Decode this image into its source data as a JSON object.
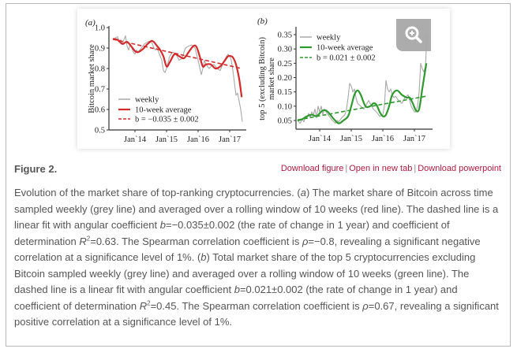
{
  "figure": {
    "label": "Figure 2.",
    "links": [
      "Download figure",
      "Open in new tab",
      "Download powerpoint"
    ],
    "link_separator": "|",
    "zoom_icon": "zoom-in-icon"
  },
  "caption": {
    "p1": "Evolution of the market share of top-ranking cryptocurrencies. (",
    "a": "a",
    "p2": ") The market share of Bitcoin across time sampled weekly (grey line) and averaged over a rolling window of 10 weeks (red line). The dashed line is a linear fit with angular coefficient ",
    "b_sym1": "b",
    "p3": "=−0.035±0.002 (the rate of change in 1 year) and coefficient of determination ",
    "r_sym1": "R",
    "sup1": "2",
    "p4": "=0.63. The Spearman correlation coefficient is ",
    "rho1": "ρ",
    "p5": "=−0.8, revealing a significant negative correlation at a significance level of 1%. (",
    "bpanel": "b",
    "p6": ") Total market share of the top 5 cryptocurrencies excluding Bitcoin sampled weekly (grey line) and averaged over a rolling window of 10 weeks (green line). The dashed line is a linear fit with angular coefficient ",
    "b_sym2": "b",
    "p7": "=0.021±0.002 (the rate of change in 1 year) and coefficient of determination ",
    "r_sym2": "R",
    "sup2": "2",
    "p8": "=0.45. The Spearman correlation coefficient is ",
    "rho2": "ρ",
    "p9": "=0.67, revealing a significant positive correlation at a significance level of 1%."
  },
  "chart_data": [
    {
      "type": "line",
      "panel": "(a)",
      "ylabel": "Bitcoin market share",
      "xlabel": "",
      "xticks": [
        "Jan`14",
        "Jan`15",
        "Jan`16",
        "Jan`17"
      ],
      "xtick_values": [
        2014,
        2015,
        2016,
        2017
      ],
      "yticks": [
        "0.5",
        "0.6",
        "0.7",
        "0.8",
        "0.9",
        "1.0"
      ],
      "ytick_values": [
        0.5,
        0.6,
        0.7,
        0.8,
        0.9,
        1.0
      ],
      "xlim": [
        2013.1,
        2017.5
      ],
      "ylim": [
        0.5,
        1.0
      ],
      "colors": {
        "weekly": "#a8a8a8",
        "avg": "#d42a2a",
        "fit": "#d42a2a"
      },
      "legend": {
        "position": "bottom-left",
        "entries": [
          "weekly",
          "10-week average",
          "b = −0.035 ± 0.002"
        ]
      },
      "series": [
        {
          "name": "weekly",
          "x": [
            2013.3,
            2013.38,
            2013.45,
            2013.5,
            2013.55,
            2013.6,
            2013.65,
            2013.7,
            2013.75,
            2013.8,
            2013.85,
            2013.9,
            2013.95,
            2014.0,
            2014.05,
            2014.1,
            2014.2,
            2014.3,
            2014.4,
            2014.5,
            2014.55,
            2014.6,
            2014.65,
            2014.7,
            2014.75,
            2014.8,
            2014.85,
            2014.9,
            2014.95,
            2015.0,
            2015.05,
            2015.1,
            2015.15,
            2015.2,
            2015.3,
            2015.4,
            2015.5,
            2015.55,
            2015.6,
            2015.7,
            2015.8,
            2015.9,
            2016.0,
            2016.1,
            2016.15,
            2016.2,
            2016.25,
            2016.3,
            2016.35,
            2016.4,
            2016.5,
            2016.6,
            2016.7,
            2016.8,
            2016.9,
            2016.95,
            2017.0,
            2017.05,
            2017.1,
            2017.15,
            2017.2,
            2017.25,
            2017.3,
            2017.35,
            2017.4
          ],
          "y": [
            0.94,
            0.95,
            0.955,
            0.93,
            0.94,
            0.92,
            0.94,
            0.96,
            0.91,
            0.89,
            0.92,
            0.9,
            0.88,
            0.87,
            0.89,
            0.88,
            0.9,
            0.92,
            0.93,
            0.935,
            0.92,
            0.9,
            0.89,
            0.9,
            0.88,
            0.86,
            0.84,
            0.79,
            0.78,
            0.8,
            0.83,
            0.86,
            0.87,
            0.88,
            0.87,
            0.84,
            0.85,
            0.88,
            0.9,
            0.91,
            0.915,
            0.9,
            0.84,
            0.77,
            0.8,
            0.84,
            0.82,
            0.81,
            0.8,
            0.81,
            0.82,
            0.8,
            0.79,
            0.83,
            0.86,
            0.87,
            0.86,
            0.84,
            0.79,
            0.73,
            0.67,
            0.68,
            0.64,
            0.6,
            0.54
          ]
        },
        {
          "name": "10-week average",
          "x": [
            2013.3,
            2013.45,
            2013.6,
            2013.75,
            2013.9,
            2014.0,
            2014.1,
            2014.25,
            2014.4,
            2014.55,
            2014.7,
            2014.8,
            2014.9,
            2015.0,
            2015.1,
            2015.25,
            2015.4,
            2015.55,
            2015.7,
            2015.85,
            2015.95,
            2016.05,
            2016.15,
            2016.25,
            2016.4,
            2016.55,
            2016.7,
            2016.85,
            2016.95,
            2017.05,
            2017.12,
            2017.2,
            2017.3,
            2017.38
          ],
          "y": [
            0.945,
            0.94,
            0.92,
            0.93,
            0.905,
            0.885,
            0.88,
            0.895,
            0.92,
            0.935,
            0.91,
            0.89,
            0.86,
            0.81,
            0.83,
            0.87,
            0.86,
            0.85,
            0.88,
            0.91,
            0.905,
            0.86,
            0.81,
            0.82,
            0.82,
            0.8,
            0.81,
            0.84,
            0.86,
            0.86,
            0.85,
            0.82,
            0.75,
            0.66
          ]
        },
        {
          "name": "linear fit",
          "x": [
            2013.3,
            2017.38
          ],
          "y": [
            0.943,
            0.8
          ]
        }
      ]
    },
    {
      "type": "line",
      "panel": "(b)",
      "ylabel": "top 5 (excluding Bitcoin) market share",
      "xlabel": "",
      "xticks": [
        "Jan`14",
        "Jan`15",
        "Jan`16",
        "Jan`17"
      ],
      "xtick_values": [
        2014,
        2015,
        2016,
        2017
      ],
      "yticks": [
        "0.05",
        "0.10",
        "0.15",
        "0.20",
        "0.25",
        "0.30",
        "0.35"
      ],
      "ytick_values": [
        0.05,
        0.1,
        0.15,
        0.2,
        0.25,
        0.3,
        0.35
      ],
      "xlim": [
        2013.1,
        2017.5
      ],
      "ylim": [
        0.035,
        0.36
      ],
      "colors": {
        "weekly": "#a8a8a8",
        "avg": "#2e9a2e",
        "fit": "#2e9a2e"
      },
      "legend": {
        "position": "top-left",
        "entries": [
          "weekly",
          "10-week average",
          "b = 0.021 ± 0.002"
        ]
      },
      "series": [
        {
          "name": "weekly",
          "x": [
            2013.3,
            2013.38,
            2013.45,
            2013.5,
            2013.55,
            2013.6,
            2013.65,
            2013.7,
            2013.75,
            2013.8,
            2013.85,
            2013.9,
            2013.95,
            2014.0,
            2014.05,
            2014.1,
            2014.15,
            2014.2,
            2014.3,
            2014.4,
            2014.5,
            2014.55,
            2014.6,
            2014.7,
            2014.8,
            2014.85,
            2014.9,
            2014.95,
            2015.0,
            2015.05,
            2015.1,
            2015.15,
            2015.2,
            2015.3,
            2015.4,
            2015.5,
            2015.55,
            2015.6,
            2015.7,
            2015.8,
            2015.9,
            2016.0,
            2016.05,
            2016.1,
            2016.15,
            2016.2,
            2016.25,
            2016.3,
            2016.35,
            2016.4,
            2016.5,
            2016.6,
            2016.7,
            2016.8,
            2016.9,
            2016.95,
            2017.0,
            2017.05,
            2017.1,
            2017.15,
            2017.2,
            2017.25,
            2017.3,
            2017.35,
            2017.4
          ],
          "y": [
            0.05,
            0.04,
            0.055,
            0.045,
            0.065,
            0.06,
            0.075,
            0.06,
            0.08,
            0.07,
            0.09,
            0.06,
            0.1,
            0.08,
            0.1,
            0.07,
            0.09,
            0.08,
            0.065,
            0.05,
            0.04,
            0.05,
            0.045,
            0.06,
            0.07,
            0.09,
            0.13,
            0.18,
            0.17,
            0.15,
            0.16,
            0.13,
            0.11,
            0.1,
            0.09,
            0.11,
            0.12,
            0.11,
            0.09,
            0.08,
            0.065,
            0.07,
            0.1,
            0.19,
            0.16,
            0.15,
            0.16,
            0.14,
            0.13,
            0.135,
            0.12,
            0.11,
            0.13,
            0.14,
            0.1,
            0.09,
            0.08,
            0.08,
            0.1,
            0.15,
            0.25,
            0.23,
            0.22,
            0.24,
            0.35
          ]
        },
        {
          "name": "10-week average",
          "x": [
            2013.3,
            2013.45,
            2013.6,
            2013.75,
            2013.9,
            2014.0,
            2014.1,
            2014.2,
            2014.3,
            2014.45,
            2014.6,
            2014.75,
            2014.9,
            2015.0,
            2015.1,
            2015.2,
            2015.3,
            2015.45,
            2015.6,
            2015.7,
            2015.8,
            2015.9,
            2016.0,
            2016.1,
            2016.2,
            2016.3,
            2016.45,
            2016.6,
            2016.75,
            2016.85,
            2016.95,
            2017.05,
            2017.15,
            2017.25,
            2017.38
          ],
          "y": [
            0.05,
            0.055,
            0.065,
            0.07,
            0.065,
            0.075,
            0.085,
            0.085,
            0.075,
            0.055,
            0.04,
            0.05,
            0.065,
            0.1,
            0.14,
            0.155,
            0.14,
            0.1,
            0.1,
            0.11,
            0.105,
            0.08,
            0.065,
            0.07,
            0.1,
            0.14,
            0.155,
            0.14,
            0.13,
            0.13,
            0.11,
            0.085,
            0.09,
            0.16,
            0.25
          ]
        },
        {
          "name": "linear fit",
          "x": [
            2013.3,
            2017.38
          ],
          "y": [
            0.052,
            0.135
          ]
        }
      ]
    }
  ]
}
